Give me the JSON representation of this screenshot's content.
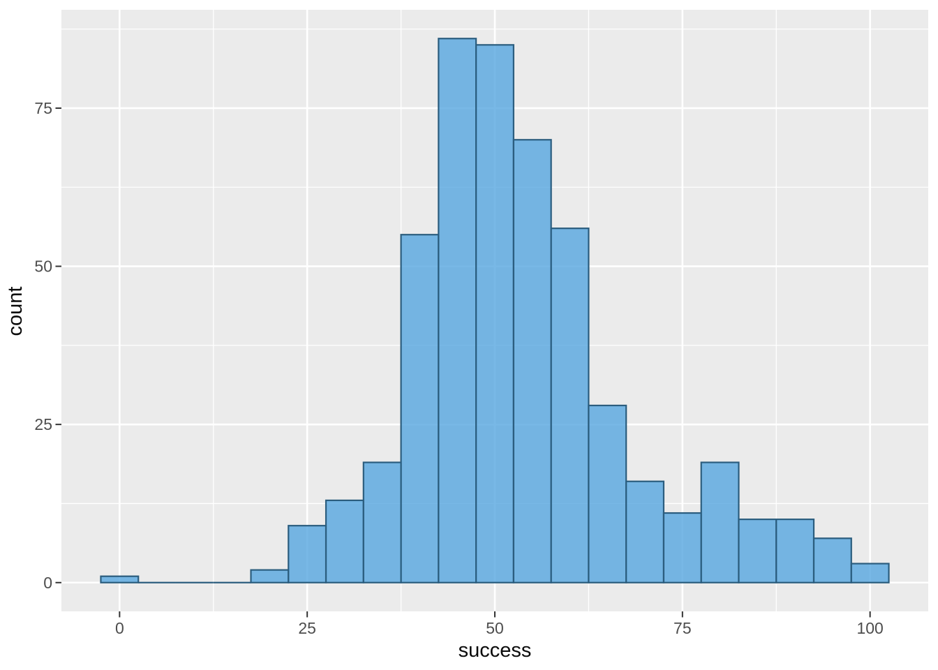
{
  "figure": {
    "background": "#ffffff",
    "panel_background": "#ebebeb",
    "grid_color": "#ffffff"
  },
  "chart_data": {
    "type": "bar",
    "subtype": "histogram",
    "title": "",
    "xlabel": "success",
    "ylabel": "count",
    "bin_width": 5,
    "bin_centers": [
      0,
      5,
      10,
      15,
      20,
      25,
      30,
      35,
      40,
      45,
      50,
      55,
      60,
      65,
      70,
      75,
      80,
      85,
      90,
      95,
      100
    ],
    "counts": [
      1,
      0,
      0,
      0,
      2,
      9,
      13,
      19,
      55,
      86,
      85,
      70,
      56,
      28,
      16,
      11,
      19,
      10,
      10,
      7,
      3
    ],
    "total_count": 500,
    "x_ticks": [
      0,
      25,
      50,
      75,
      100
    ],
    "x_tick_labels": [
      "0",
      "25",
      "50",
      "75",
      "100"
    ],
    "y_ticks": [
      0,
      25,
      50,
      75
    ],
    "y_tick_labels": [
      "0",
      "25",
      "50",
      "75"
    ],
    "x_minor_ticks": [
      12.5,
      37.5,
      62.5,
      87.5
    ],
    "y_minor_ticks": [
      12.5,
      37.5,
      62.5,
      87.5
    ],
    "xlim": [
      -7.75,
      107.75
    ],
    "ylim": [
      -4.55,
      90.55
    ],
    "grid": "major+minor",
    "legend_position": "none",
    "colors": {
      "bar_fill": "#56a6e0",
      "bar_fill_opacity": 0.8,
      "bar_stroke": "#2b5d7e",
      "tick_mark": "#333333",
      "tick_label": "#4d4d4d",
      "axis_title": "#0a0a0a"
    }
  }
}
